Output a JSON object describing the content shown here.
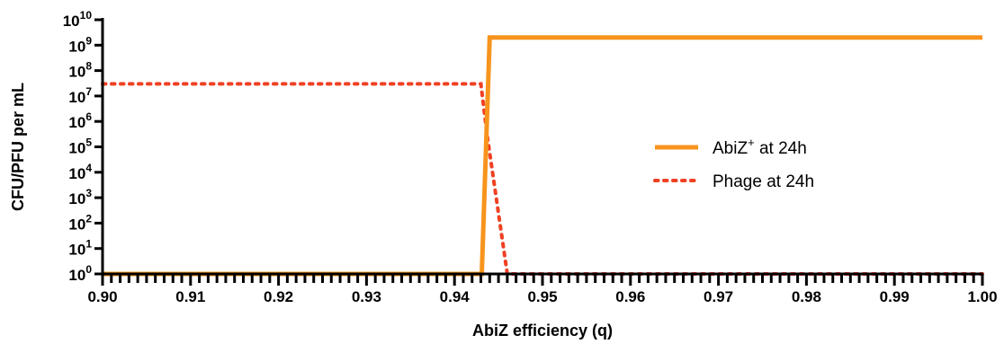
{
  "chart_data": {
    "type": "line",
    "title": "",
    "xlabel": "AbiZ efficiency (q)",
    "ylabel": "CFU/PFU per mL",
    "xlim": [
      0.9,
      1.0
    ],
    "ylim": [
      1,
      10000000000
    ],
    "y_scale": "log10",
    "grid": false,
    "legend_position": "right-middle",
    "x_ticks": [
      "0.90",
      "0.91",
      "0.92",
      "0.93",
      "0.94",
      "0.95",
      "0.96",
      "0.97",
      "0.98",
      "0.99",
      "1.00"
    ],
    "y_tick_exponents": [
      0,
      1,
      2,
      3,
      4,
      5,
      6,
      7,
      8,
      9,
      10
    ],
    "y_tick_base": "10",
    "series": [
      {
        "name": "AbiZ",
        "name_superscript": "+",
        "name_suffix": " at 24h",
        "style": "solid",
        "color": "#F7941D",
        "x": [
          0.9,
          0.9431,
          0.944,
          1.0
        ],
        "y": [
          1,
          1,
          2000000000,
          2000000000
        ]
      },
      {
        "name": "Phage at 24h",
        "style": "dotted",
        "color": "#EF4123",
        "x": [
          0.9,
          0.943,
          0.9437,
          0.946,
          1.0
        ],
        "y": [
          30000000,
          30000000,
          300000,
          1,
          1
        ]
      }
    ]
  }
}
